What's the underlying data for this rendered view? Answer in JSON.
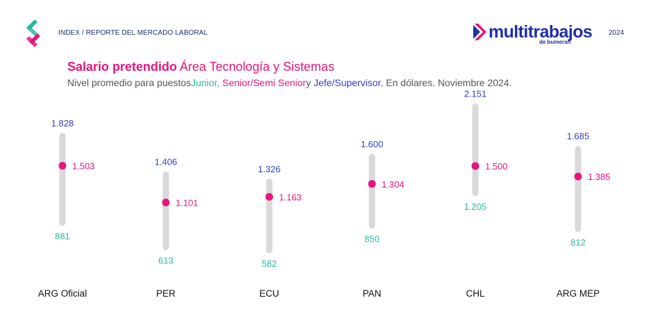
{
  "header": {
    "breadcrumb": "INDEX / REPORTE DEL MERCADO LABORAL",
    "brand_name": "multitrabajos",
    "brand_sub": "de bumeran",
    "year": "2024",
    "logo_icon": "chevron-logo-icon"
  },
  "heading": {
    "title_bold": "Salario pretendido",
    "title_rest": "Área Tecnología y Sistemas",
    "subtitle_prefix": "Nivel promedio para puestos",
    "subtitle_junior": "Junior,",
    "subtitle_senior": "Senior/Semi Senior",
    "subtitle_y": "y",
    "subtitle_jefe": "Jefe/Supervisor",
    "subtitle_suffix": ". En dólares. Noviembre 2024."
  },
  "colors": {
    "junior": "#2bb8a3",
    "senior": "#e6157f",
    "jefe": "#2f3fc2",
    "bar": "#d9d9d9",
    "brand": "#1f2fa8"
  },
  "chart_data": {
    "type": "range-dot",
    "categories": [
      "ARG Oficial",
      "PER",
      "ECU",
      "PAN",
      "CHL",
      "ARG MEP"
    ],
    "series": [
      {
        "name": "Junior",
        "values": [
          881,
          613,
          582,
          850,
          1205,
          812
        ],
        "labels": [
          "881",
          "613",
          "582",
          "850",
          "1.205",
          "812"
        ]
      },
      {
        "name": "Senior/Semi Senior",
        "values": [
          1503,
          1101,
          1163,
          1304,
          1500,
          1385
        ],
        "labels": [
          "1.503",
          "1.101",
          "1.163",
          "1.304",
          "1.500",
          "1.385"
        ]
      },
      {
        "name": "Jefe/Supervisor",
        "values": [
          1828,
          1406,
          1326,
          1600,
          2151,
          1685
        ],
        "labels": [
          "1.828",
          "1.406",
          "1.326",
          "1.600",
          "2.151",
          "1.685"
        ]
      }
    ],
    "ylim": [
      0,
      2500
    ],
    "grid": false
  }
}
